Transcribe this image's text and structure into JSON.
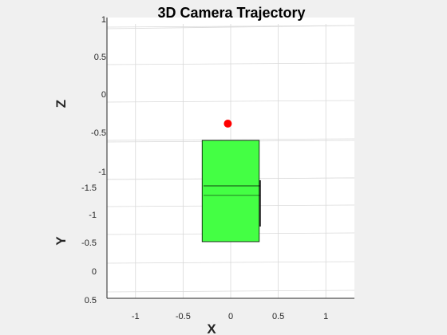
{
  "chart_data": {
    "type": "scatter",
    "title": "3D Camera Trajectory",
    "xlabel": "X",
    "ylabel": "Y",
    "zlabel": "Z",
    "x_ticks": [
      "-1",
      "-0.5",
      "0",
      "0.5",
      "1"
    ],
    "y_ticks": [
      "-1.5",
      "-1",
      "-0.5",
      "0",
      "0.5"
    ],
    "z_ticks": [
      "1",
      "0.5",
      "0",
      "-0.5",
      "-1"
    ],
    "xlim": [
      -1.3,
      1.3
    ],
    "grid": true,
    "camera_position": {
      "x": -0.03
    },
    "camera_body_x_range": [
      -0.3,
      0.3
    ],
    "colors": {
      "camera_point": "#ff0000",
      "camera_body": "#44ff44",
      "background": "#f0f0f0",
      "axes_background": "#ffffff",
      "grid": "#d9d9d9"
    }
  }
}
